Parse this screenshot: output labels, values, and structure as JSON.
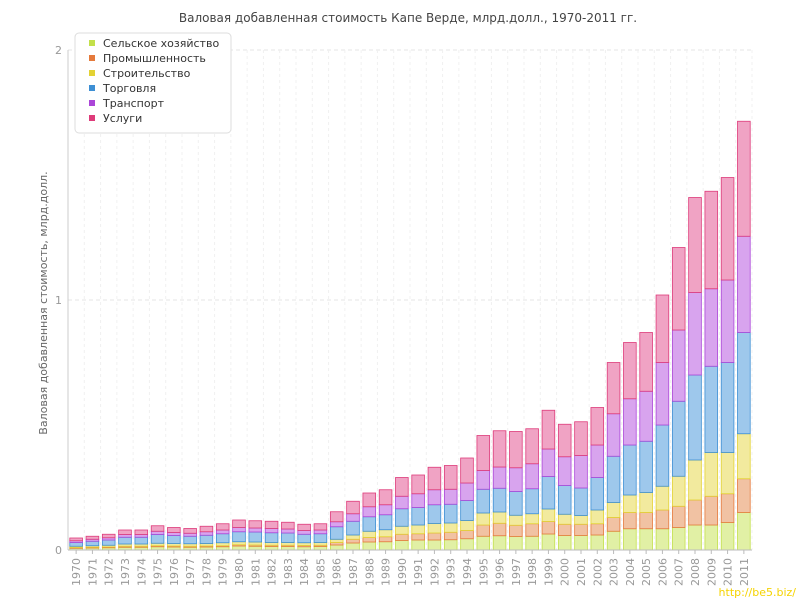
{
  "chart_data": {
    "type": "bar",
    "stacked": true,
    "title": "Валовая добавленная стоимость Капе Верде, млрд.долл., 1970-2011 гг.",
    "ylabel": "Валовая добавленная стоимость, млрд.долл.",
    "xlabel": "",
    "ylim": [
      0,
      2
    ],
    "yticks": [
      "0",
      "1",
      "2"
    ],
    "grid": true,
    "legend_position": "top-left",
    "categories": [
      "1970",
      "1971",
      "1972",
      "1973",
      "1974",
      "1975",
      "1976",
      "1977",
      "1978",
      "1979",
      "1980",
      "1981",
      "1982",
      "1983",
      "1984",
      "1985",
      "1986",
      "1987",
      "1988",
      "1989",
      "1990",
      "1991",
      "1992",
      "1993",
      "1994",
      "1995",
      "1996",
      "1997",
      "1998",
      "1999",
      "2000",
      "2001",
      "2002",
      "2003",
      "2004",
      "2005",
      "2006",
      "2007",
      "2008",
      "2009",
      "2010",
      "2011"
    ],
    "series": [
      {
        "name": "Сельское хозяйство",
        "color": "#c3e04a",
        "fill": "#e1f0a5",
        "values": [
          0.007,
          0.008,
          0.009,
          0.011,
          0.011,
          0.013,
          0.012,
          0.011,
          0.012,
          0.013,
          0.016,
          0.015,
          0.014,
          0.014,
          0.013,
          0.014,
          0.02,
          0.028,
          0.032,
          0.033,
          0.038,
          0.04,
          0.04,
          0.041,
          0.045,
          0.055,
          0.057,
          0.054,
          0.055,
          0.064,
          0.058,
          0.058,
          0.06,
          0.075,
          0.085,
          0.085,
          0.085,
          0.09,
          0.1,
          0.1,
          0.11,
          0.15
        ]
      },
      {
        "name": "Промышленность",
        "color": "#e57a3c",
        "fill": "#f1c2a3",
        "values": [
          0.003,
          0.003,
          0.003,
          0.004,
          0.004,
          0.004,
          0.004,
          0.004,
          0.004,
          0.004,
          0.005,
          0.005,
          0.005,
          0.005,
          0.005,
          0.005,
          0.01,
          0.015,
          0.018,
          0.02,
          0.025,
          0.025,
          0.028,
          0.03,
          0.033,
          0.045,
          0.05,
          0.045,
          0.05,
          0.05,
          0.045,
          0.045,
          0.045,
          0.055,
          0.065,
          0.065,
          0.075,
          0.085,
          0.1,
          0.115,
          0.115,
          0.135
        ]
      },
      {
        "name": "Строительство",
        "color": "#e3d233",
        "fill": "#f2ea9e",
        "values": [
          0.005,
          0.006,
          0.007,
          0.009,
          0.009,
          0.01,
          0.01,
          0.01,
          0.01,
          0.012,
          0.012,
          0.012,
          0.011,
          0.011,
          0.011,
          0.011,
          0.013,
          0.017,
          0.025,
          0.028,
          0.032,
          0.035,
          0.038,
          0.037,
          0.04,
          0.048,
          0.045,
          0.04,
          0.04,
          0.05,
          0.04,
          0.035,
          0.055,
          0.06,
          0.07,
          0.08,
          0.095,
          0.12,
          0.16,
          0.175,
          0.165,
          0.18
        ]
      },
      {
        "name": "Торговля",
        "color": "#3d8fd4",
        "fill": "#9ec8ec",
        "values": [
          0.015,
          0.018,
          0.021,
          0.027,
          0.027,
          0.035,
          0.032,
          0.03,
          0.033,
          0.036,
          0.04,
          0.04,
          0.039,
          0.038,
          0.034,
          0.035,
          0.05,
          0.055,
          0.058,
          0.06,
          0.07,
          0.07,
          0.075,
          0.075,
          0.08,
          0.095,
          0.095,
          0.095,
          0.1,
          0.13,
          0.115,
          0.11,
          0.13,
          0.185,
          0.2,
          0.205,
          0.245,
          0.3,
          0.34,
          0.345,
          0.36,
          0.405
        ]
      },
      {
        "name": "Транспорт",
        "color": "#ab46d8",
        "fill": "#d8a4ee",
        "values": [
          0.007,
          0.008,
          0.009,
          0.011,
          0.011,
          0.013,
          0.012,
          0.012,
          0.014,
          0.015,
          0.017,
          0.016,
          0.017,
          0.016,
          0.015,
          0.015,
          0.02,
          0.03,
          0.04,
          0.04,
          0.05,
          0.055,
          0.06,
          0.06,
          0.07,
          0.075,
          0.085,
          0.095,
          0.1,
          0.11,
          0.115,
          0.13,
          0.13,
          0.17,
          0.185,
          0.2,
          0.25,
          0.285,
          0.33,
          0.31,
          0.33,
          0.385
        ]
      },
      {
        "name": "Услуги",
        "color": "#de3b7a",
        "fill": "#f0a3c4",
        "values": [
          0.011,
          0.012,
          0.014,
          0.018,
          0.018,
          0.022,
          0.02,
          0.019,
          0.022,
          0.025,
          0.03,
          0.029,
          0.029,
          0.027,
          0.025,
          0.025,
          0.04,
          0.05,
          0.055,
          0.06,
          0.075,
          0.075,
          0.09,
          0.095,
          0.1,
          0.14,
          0.145,
          0.145,
          0.14,
          0.155,
          0.13,
          0.135,
          0.15,
          0.205,
          0.225,
          0.235,
          0.27,
          0.33,
          0.38,
          0.39,
          0.41,
          0.46
        ]
      }
    ]
  },
  "watermark": "http://be5.biz/"
}
